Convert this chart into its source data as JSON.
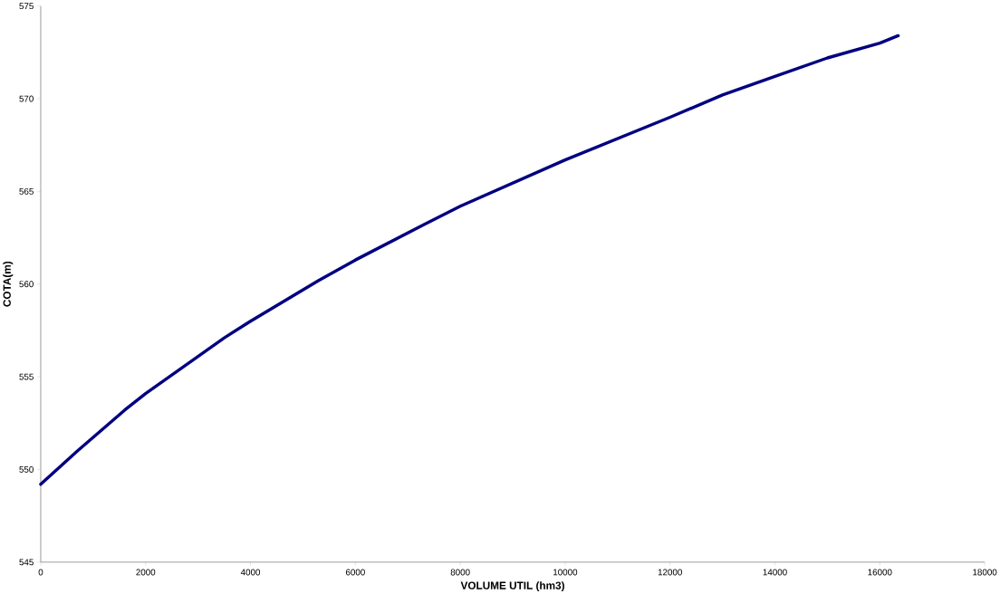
{
  "chart_data": {
    "type": "line",
    "xlabel": "VOLUME UTIL (hm3)",
    "ylabel": "COTA(m)",
    "x": [
      0,
      700,
      1600,
      2000,
      3500,
      4000,
      5300,
      6000,
      7300,
      8000,
      10000,
      12000,
      13000,
      14000,
      15000,
      16000,
      16350
    ],
    "series": [
      {
        "color": "#000080",
        "values": [
          549.2,
          551.0,
          553.2,
          554.1,
          557.1,
          558.0,
          560.2,
          561.3,
          563.2,
          564.2,
          566.7,
          569.0,
          570.2,
          571.2,
          572.2,
          573.0,
          573.4
        ]
      }
    ],
    "xlim": [
      0,
      18000
    ],
    "ylim": [
      545,
      575
    ],
    "xticks": [
      0,
      2000,
      4000,
      6000,
      8000,
      10000,
      12000,
      14000,
      16000,
      18000
    ],
    "yticks": [
      545,
      550,
      555,
      560,
      565,
      570,
      575
    ],
    "grid": false,
    "marker": "none",
    "line_style": "solid"
  }
}
